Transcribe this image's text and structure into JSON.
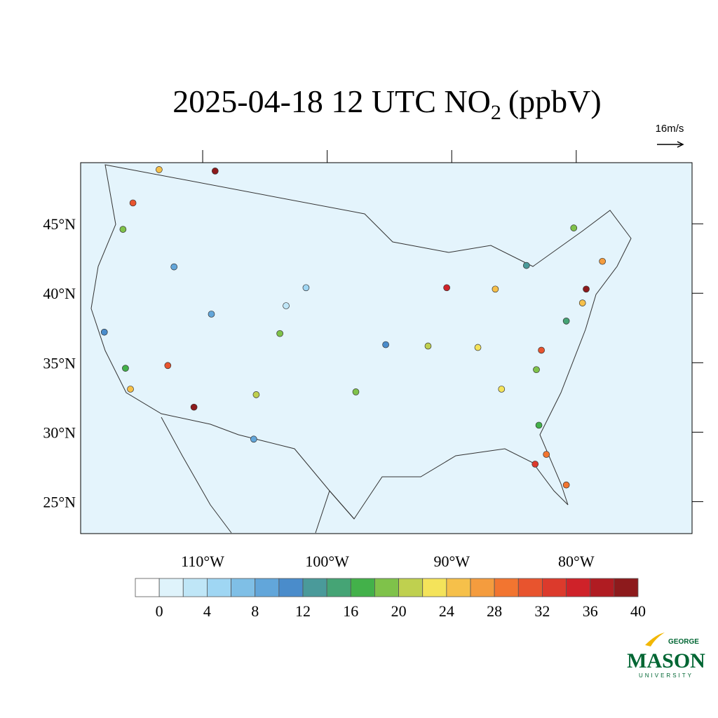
{
  "title": {
    "main": "2025-04-18 12 UTC NO",
    "subscript": "2",
    "unit": "(ppbV)"
  },
  "wind_reference": "16m/s",
  "chart_data": {
    "type": "map",
    "xlim": [
      -119.8,
      -70.7
    ],
    "ylim": [
      22.7,
      49.4
    ],
    "xticks": [
      {
        "value": -110,
        "label": "110°W"
      },
      {
        "value": -100,
        "label": "100°W"
      },
      {
        "value": -90,
        "label": "90°W"
      },
      {
        "value": -80,
        "label": "80°W"
      }
    ],
    "yticks": [
      {
        "value": 25,
        "label": "25°N"
      },
      {
        "value": 30,
        "label": "30°N"
      },
      {
        "value": 35,
        "label": "35°N"
      },
      {
        "value": 40,
        "label": "40°N"
      },
      {
        "value": 45,
        "label": "45°N"
      }
    ],
    "colorbar": {
      "levels": [
        0,
        2,
        4,
        6,
        8,
        10,
        12,
        14,
        16,
        18,
        20,
        22,
        24,
        26,
        28,
        30,
        32,
        34,
        36,
        38,
        40
      ],
      "ticks": [
        0,
        4,
        8,
        12,
        16,
        20,
        24,
        28,
        32,
        36,
        40
      ],
      "colors": [
        "#ffffff",
        "#dff3fb",
        "#bfe6f7",
        "#9fd6f3",
        "#7fbfe6",
        "#62a6da",
        "#4a8ccb",
        "#4a9a9a",
        "#45a475",
        "#43b14a",
        "#7fc24a",
        "#bfd04f",
        "#f4e35a",
        "#f6c04a",
        "#f49c3e",
        "#f27530",
        "#e8542e",
        "#dc3a2c",
        "#cf2229",
        "#b01c22",
        "#8d1a1c"
      ]
    },
    "stations": {
      "lon": [
        -109.0,
        -115.6,
        -116.4,
        -117.9,
        -116.2,
        -115.8,
        -112.8,
        -110.7,
        -109.3,
        -103.8,
        -105.7,
        -105.9,
        -97.7,
        -95.3,
        -91.9,
        -90.4,
        -86.5,
        -84.0,
        -80.2,
        -79.2,
        -79.5,
        -77.9,
        -80.8,
        -83.2,
        -82.8,
        -86.0,
        -83.0,
        -82.4,
        -83.3,
        -80.8,
        -87.9,
        -101.7,
        -113.5,
        -103.3,
        -112.3
      ],
      "lat": [
        48.8,
        46.5,
        44.6,
        37.2,
        34.6,
        33.1,
        34.8,
        31.8,
        38.5,
        37.1,
        32.7,
        29.5,
        32.9,
        36.3,
        36.2,
        40.4,
        40.3,
        42.0,
        44.7,
        40.3,
        39.3,
        42.3,
        38.0,
        34.5,
        35.9,
        33.1,
        30.5,
        28.4,
        27.7,
        26.2,
        36.1,
        40.4,
        48.9,
        39.1,
        41.9
      ],
      "values": [
        38,
        30,
        18,
        10,
        17,
        24,
        30,
        40,
        9,
        18,
        20,
        8,
        18,
        11,
        21,
        34,
        24,
        12,
        18,
        40,
        24,
        26,
        14,
        18,
        30,
        22,
        17,
        28,
        32,
        28,
        22,
        5,
        24,
        2,
        9
      ]
    }
  },
  "logo": {
    "top": "GEORGE",
    "main": "MASON",
    "bottom": "UNIVERSITY"
  }
}
